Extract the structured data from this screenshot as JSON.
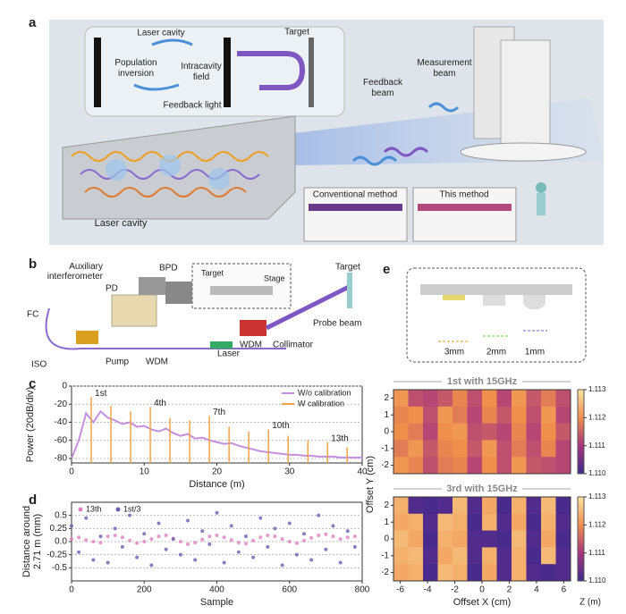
{
  "panel_a": {
    "label": "a",
    "cavity_title": "Laser cavity",
    "population": [
      "Population",
      "inversion"
    ],
    "intracavity": [
      "Intracavity",
      "field"
    ],
    "target": "Target",
    "feedback_light": "Feedback light",
    "cavity_label": "Laser cavity",
    "feedback_beam": [
      "Feedback",
      "beam"
    ],
    "measurement_beam": [
      "Measurement",
      "beam"
    ],
    "conventional": "Conventional method",
    "this_method": "This  method"
  },
  "panel_b": {
    "label": "b",
    "auxiliary": [
      "Auxiliary",
      "interferometer"
    ],
    "pd": "PD",
    "bpd": "BPD",
    "fc": "FC",
    "iso": "ISO",
    "pump": "Pump",
    "wdm1": "WDM",
    "laser": "Laser",
    "wdm2": "WDM",
    "collimator": "Collimator",
    "probe_beam": "Probe beam",
    "target": "Target",
    "inset_target": "Target",
    "inset_stage": "Stage"
  },
  "panel_e_inset": {
    "label": "e",
    "depths": [
      "3mm",
      "2mm",
      "1mm"
    ]
  },
  "chart_data": [
    {
      "label": "c",
      "type": "line",
      "xlabel": "Distance (m)",
      "ylabel": "Power (20dB/div)",
      "xlim": [
        0,
        40
      ],
      "xticks": [
        0,
        10,
        20,
        30,
        40
      ],
      "ylim": [
        -85,
        0
      ],
      "yticks": [
        -80,
        -60,
        -40,
        -20,
        0
      ],
      "grid": true,
      "legend": "upper right",
      "series": [
        {
          "name": "W/o calibration",
          "color": "#c48fdc",
          "x": [
            0,
            1,
            2,
            3,
            4,
            5,
            6,
            7,
            8,
            9,
            10,
            11,
            12,
            13,
            14,
            15,
            16,
            17,
            18,
            19,
            20,
            21,
            22,
            23,
            24,
            25,
            26,
            27,
            28,
            29,
            30,
            31,
            32,
            33,
            34,
            35,
            36,
            37,
            38,
            39,
            40
          ],
          "values": [
            -80,
            -60,
            -30,
            -40,
            -28,
            -35,
            -38,
            -42,
            -40,
            -45,
            -44,
            -48,
            -50,
            -47,
            -52,
            -55,
            -53,
            -58,
            -57,
            -60,
            -62,
            -64,
            -63,
            -66,
            -68,
            -70,
            -72,
            -73,
            -74,
            -75,
            -76,
            -76,
            -77,
            -77,
            -78,
            -78,
            -78,
            -79,
            -79,
            -79,
            -79
          ]
        },
        {
          "name": "W calibration",
          "color": "#f2a347",
          "style": "stem",
          "x": [
            2.71,
            5.42,
            8.13,
            10.84,
            13.55,
            16.26,
            18.97,
            21.68,
            24.39,
            27.1,
            29.81,
            32.52,
            35.23,
            37.94
          ],
          "values": [
            -12,
            -22,
            -28,
            -23,
            -35,
            -38,
            -33,
            -45,
            -50,
            -48,
            -55,
            -60,
            -62,
            -68
          ]
        }
      ],
      "annotations": [
        "1st",
        "4th",
        "7th",
        "10th",
        "13th"
      ]
    },
    {
      "label": "d",
      "type": "scatter",
      "xlabel": "Sample",
      "ylabel": [
        "Distance around",
        "2.71 m (mm)"
      ],
      "xlim": [
        0,
        800
      ],
      "xticks": [
        0,
        200,
        400,
        600,
        800
      ],
      "ylim": [
        -0.75,
        0.75
      ],
      "yticks": [
        -0.5,
        -0.25,
        {
          "value": 0,
          "label": "0.0"
        },
        0.25,
        0.5
      ],
      "grid": true,
      "legend": "upper left",
      "x": [
        0,
        20,
        40,
        60,
        80,
        100,
        120,
        140,
        160,
        180,
        200,
        220,
        240,
        260,
        280,
        300,
        320,
        340,
        360,
        380,
        400,
        420,
        440,
        460,
        480,
        500,
        520,
        540,
        560,
        580,
        600,
        620,
        640,
        660,
        680,
        700,
        720,
        740,
        760,
        780
      ],
      "series": [
        {
          "name": "13th",
          "color": "#e07fc0",
          "values": [
            0.05,
            0.08,
            0.03,
            0.0,
            -0.02,
            0.1,
            0.12,
            0.08,
            0.02,
            -0.03,
            0.0,
            0.05,
            0.1,
            0.12,
            0.06,
            0.0,
            -0.05,
            -0.02,
            0.04,
            0.1,
            0.12,
            0.08,
            0.03,
            -0.02,
            -0.04,
            0.02,
            0.08,
            0.12,
            0.1,
            0.05,
            0.0,
            -0.03,
            0.02,
            0.07,
            0.12,
            0.14,
            0.1,
            0.05,
            0.08,
            0.1
          ]
        },
        {
          "name": "1st/3",
          "color": "#6a5fb0",
          "values": [
            0.3,
            -0.2,
            0.45,
            -0.35,
            0.1,
            -0.4,
            0.25,
            -0.1,
            0.5,
            -0.3,
            0.15,
            -0.45,
            0.35,
            -0.15,
            0.05,
            -0.25,
            0.4,
            -0.35,
            0.2,
            -0.05,
            0.55,
            -0.4,
            0.3,
            -0.2,
            0.1,
            -0.3,
            0.45,
            -0.1,
            0.25,
            -0.45,
            0.35,
            -0.25,
            0.15,
            -0.35,
            0.5,
            -0.15,
            0.3,
            -0.4,
            0.2,
            -0.1
          ]
        }
      ]
    },
    {
      "type": "heatmap",
      "title": "1st with 15GHz",
      "ylabel": "Offset Y (cm)",
      "xlim": [
        -6.5,
        6.5
      ],
      "ylim": [
        -2.5,
        2.5
      ],
      "yticks": [
        -2,
        -1,
        0,
        1,
        2
      ],
      "clim": [
        1.11,
        1.113
      ],
      "cticks": [
        {
          "value": 1.11,
          "label": "1.110"
        },
        1.111,
        1.112,
        1.113
      ],
      "colormap": [
        "#3d2a8f",
        "#a8357e",
        "#ef8f4c",
        "#fbe3a0"
      ],
      "values": [
        [
          1.1121,
          1.1113,
          1.1112,
          1.1114,
          1.1119,
          1.1113,
          1.112,
          1.1112,
          1.1121,
          1.1114,
          1.1118,
          1.1113
        ],
        [
          1.1119,
          1.112,
          1.1113,
          1.1121,
          1.1118,
          1.1112,
          1.1119,
          1.1114,
          1.112,
          1.1113,
          1.1121,
          1.1112
        ],
        [
          1.112,
          1.1118,
          1.1112,
          1.112,
          1.1121,
          1.1113,
          1.1114,
          1.1112,
          1.1119,
          1.1112,
          1.112,
          1.1114
        ],
        [
          1.1118,
          1.1121,
          1.1114,
          1.1119,
          1.112,
          1.1114,
          1.1121,
          1.1113,
          1.1118,
          1.1113,
          1.1119,
          1.1112
        ],
        [
          1.1121,
          1.1119,
          1.1113,
          1.1118,
          1.1119,
          1.1112,
          1.112,
          1.1113,
          1.1121,
          1.1114,
          1.1113,
          1.1112
        ]
      ]
    },
    {
      "type": "heatmap",
      "title": "3rd with 15GHz",
      "xlabel": "Offset X (cm)",
      "clabel": "Z (m)",
      "xlim": [
        -6.5,
        6.5
      ],
      "xticks": [
        -6,
        -4,
        -2,
        0,
        2,
        4,
        6
      ],
      "ylim": [
        -2.5,
        2.5
      ],
      "yticks": [
        -2,
        -1,
        0,
        1,
        2
      ],
      "clim": [
        1.11,
        1.113
      ],
      "cticks": [
        {
          "value": 1.11,
          "label": "1.110"
        },
        1.111,
        1.112,
        1.113
      ],
      "colormap": [
        "#3d2a8f",
        "#a8357e",
        "#ef8f4c",
        "#fbe3a0"
      ],
      "values": [
        [
          1.1124,
          1.1102,
          1.1101,
          1.1102,
          1.1125,
          1.1102,
          1.1123,
          1.1101,
          1.1124,
          1.1102,
          1.1125,
          1.1101
        ],
        [
          1.1123,
          1.1124,
          1.1102,
          1.1125,
          1.1124,
          1.1101,
          1.1124,
          1.1102,
          1.1123,
          1.1101,
          1.1124,
          1.1102
        ],
        [
          1.1125,
          1.1123,
          1.1101,
          1.1124,
          1.1123,
          1.1102,
          1.1102,
          1.1101,
          1.1125,
          1.1102,
          1.1123,
          1.1101
        ],
        [
          1.1124,
          1.1125,
          1.1102,
          1.1123,
          1.1125,
          1.1102,
          1.1124,
          1.1102,
          1.1124,
          1.1101,
          1.1125,
          1.1102
        ],
        [
          1.1123,
          1.1124,
          1.1101,
          1.1125,
          1.1124,
          1.1101,
          1.1123,
          1.1102,
          1.1124,
          1.1102,
          1.1101,
          1.1102
        ]
      ]
    }
  ]
}
